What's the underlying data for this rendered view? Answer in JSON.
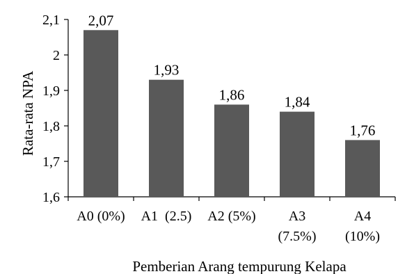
{
  "chart_data": {
    "type": "bar",
    "categories": [
      [
        "A0 (0%)"
      ],
      [
        "A1  (2.5)"
      ],
      [
        "A2 (5%)"
      ],
      [
        "A3",
        "(7.5%)"
      ],
      [
        "A4",
        "(10%)"
      ]
    ],
    "values": [
      2.07,
      1.93,
      1.86,
      1.84,
      1.76
    ],
    "data_labels": [
      "2,07",
      "1,93",
      "1,86",
      "1,84",
      "1,76"
    ],
    "xlabel": "Pemberian Arang tempurung Kelapa",
    "ylabel": "Rata-rata NPA",
    "ylim": [
      1.6,
      2.1
    ],
    "yticks": [
      2.1,
      2.0,
      1.9,
      1.8,
      1.7,
      1.6
    ],
    "ytick_labels": [
      "2,1",
      "2",
      "1,9",
      "1,8",
      "1,7",
      "1,6"
    ],
    "grid": false,
    "legend": "none",
    "bar_color": "#595959"
  }
}
